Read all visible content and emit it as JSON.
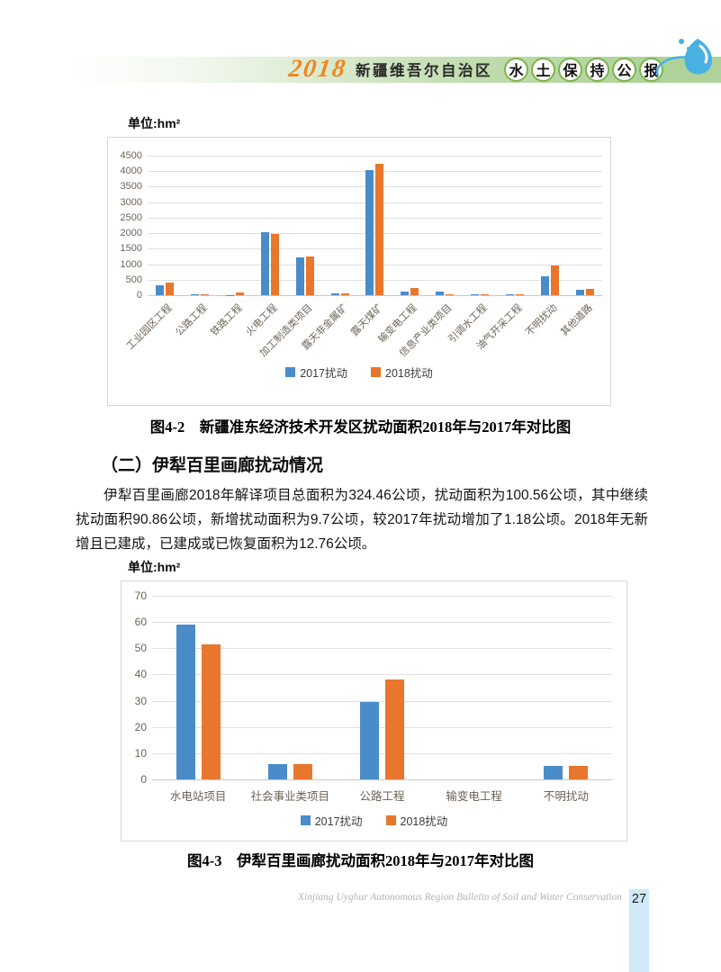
{
  "header": {
    "year": "2018",
    "region": "新疆维吾尔自治区",
    "title_chars": [
      "水",
      "土",
      "保",
      "持",
      "公",
      "报"
    ]
  },
  "figure1": {
    "unit_label": "单位:hm²",
    "caption": "图4-2　新疆准东经济技术开发区扰动面积2018年与2017年对比图"
  },
  "section": {
    "heading": "（二）伊犁百里画廊扰动情况",
    "paragraph": "伊犁百里画廊2018年解译项目总面积为324.46公顷，扰动面积为100.56公顷，其中继续扰动面积90.86公顷，新增扰动面积为9.7公顷，较2017年扰动增加了1.18公顷。2018年无新增且已建成，已建成或已恢复面积为12.76公顷。"
  },
  "figure2": {
    "unit_label": "单位:hm²",
    "caption": "图4-3　伊犁百里画廊扰动面积2018年与2017年对比图"
  },
  "footer": {
    "text": "Xinjiang Uyghur Autonomous Region Bulletin of Soil and Water Conservation",
    "page_number": "27"
  },
  "colors": {
    "series_2017_blue": "#4a8cc8",
    "series_2018_orange": "#e8762c",
    "banner_green": "#aed29a",
    "year_orange": "#f0871f",
    "page_strip_blue": "#cfe9f8"
  },
  "chart_data": [
    {
      "type": "bar",
      "title": "新疆准东经济技术开发区扰动面积2018年与2017年对比图",
      "ylabel": "hm²",
      "xlabel": "",
      "categories": [
        "工业园区工程",
        "公路工程",
        "铁路工程",
        "火电工程",
        "加工制造类项目",
        "露天非金属矿",
        "露天煤矿",
        "输变电工程",
        "信息产业类项目",
        "引调水工程",
        "油气开采工程",
        "不明扰动",
        "其他道路"
      ],
      "series": [
        {
          "name": "2017扰动",
          "color": "#4a8cc8",
          "values": [
            330,
            30,
            5,
            2030,
            1210,
            55,
            4050,
            130,
            110,
            25,
            30,
            600,
            170
          ]
        },
        {
          "name": "2018扰动",
          "color": "#e8762c",
          "values": [
            400,
            35,
            90,
            1970,
            1260,
            60,
            4250,
            230,
            35,
            25,
            25,
            950,
            200
          ]
        }
      ],
      "ylim": [
        0,
        4500
      ],
      "ytick_step": 500,
      "grid": true,
      "legend_position": "bottom",
      "x_label_rotation": -45
    },
    {
      "type": "bar",
      "title": "伊犁百里画廊扰动面积2018年与2017年对比图",
      "ylabel": "hm²",
      "xlabel": "",
      "categories": [
        "水电站项目",
        "社会事业类项目",
        "公路工程",
        "输变电工程",
        "不明扰动"
      ],
      "series": [
        {
          "name": "2017扰动",
          "color": "#4a8cc8",
          "values": [
            59,
            6,
            29.5,
            0,
            5
          ]
        },
        {
          "name": "2018扰动",
          "color": "#e8762c",
          "values": [
            51.5,
            6,
            38,
            0,
            5
          ]
        }
      ],
      "ylim": [
        0,
        70
      ],
      "ytick_step": 10,
      "grid": true,
      "legend_position": "bottom",
      "x_label_rotation": 0
    }
  ]
}
